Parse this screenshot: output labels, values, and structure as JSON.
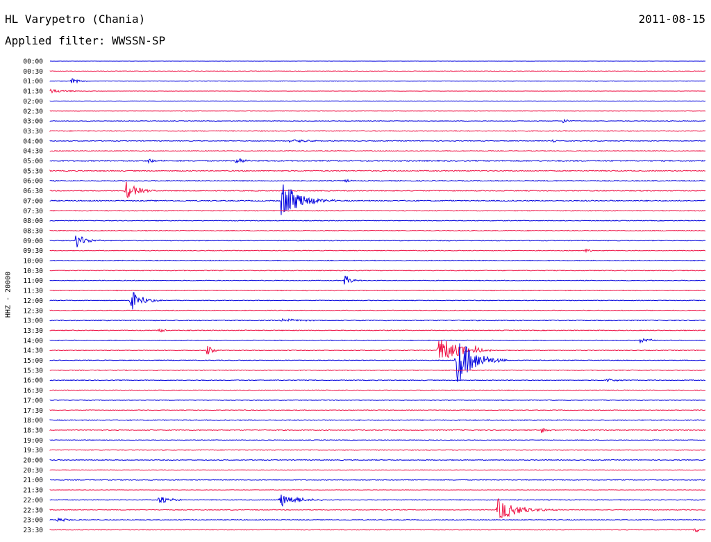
{
  "header": {
    "station": "HL Varypetro (Chania)",
    "date": "2011-08-15",
    "filter": "Applied filter: WWSSN-SP"
  },
  "y_axis_label": "HHZ - 20000",
  "colors": {
    "even_trace": "#0000dd",
    "odd_trace": "#ee1144",
    "text": "#000000"
  },
  "chart_data": {
    "type": "line",
    "title": "HL Varypetro (Chania)",
    "ylabel": "HHZ - 20000",
    "trace_duration_minutes": 30,
    "row_labels": [
      "00:00",
      "00:30",
      "01:00",
      "01:30",
      "02:00",
      "02:30",
      "03:00",
      "03:30",
      "04:00",
      "04:30",
      "05:00",
      "05:30",
      "06:00",
      "06:30",
      "07:00",
      "07:30",
      "08:00",
      "08:30",
      "09:00",
      "09:30",
      "10:00",
      "10:30",
      "11:00",
      "11:30",
      "12:00",
      "12:30",
      "13:00",
      "13:30",
      "14:00",
      "14:30",
      "15:00",
      "15:30",
      "16:00",
      "16:30",
      "17:00",
      "17:30",
      "18:00",
      "18:30",
      "19:00",
      "19:30",
      "20:00",
      "20:30",
      "21:00",
      "21:30",
      "22:00",
      "22:30",
      "23:00",
      "23:30"
    ],
    "noise_levels": [
      0.3,
      0.8,
      0.6,
      0.4,
      0.5,
      0.6,
      0.8,
      1.2,
      1.0,
      1.0,
      1.5,
      1.4,
      1.3,
      1.2,
      1.5,
      1.2,
      1.0,
      1.1,
      1.0,
      1.0,
      1.2,
      1.1,
      1.0,
      1.1,
      1.0,
      1.0,
      1.3,
      1.1,
      1.0,
      1.0,
      1.0,
      1.1,
      1.0,
      0.9,
      0.8,
      0.9,
      1.2,
      1.1,
      0.9,
      1.0,
      1.0,
      0.7,
      1.0,
      0.6,
      1.0,
      1.0,
      1.0,
      0.9
    ],
    "events": [
      {
        "row": 2,
        "minute": 1.0,
        "amplitude": 4,
        "duration_min": 1.0
      },
      {
        "row": 3,
        "minute": 0.0,
        "amplitude": 3,
        "duration_min": 2.5
      },
      {
        "row": 6,
        "minute": 23.5,
        "amplitude": 4,
        "duration_min": 0.6
      },
      {
        "row": 8,
        "minute": 11.0,
        "amplitude": 3,
        "duration_min": 3.0
      },
      {
        "row": 8,
        "minute": 23.0,
        "amplitude": 3,
        "duration_min": 0.6
      },
      {
        "row": 10,
        "minute": 4.5,
        "amplitude": 3,
        "duration_min": 1.2
      },
      {
        "row": 10,
        "minute": 8.5,
        "amplitude": 4,
        "duration_min": 1.5
      },
      {
        "row": 12,
        "minute": 13.5,
        "amplitude": 3,
        "duration_min": 0.5
      },
      {
        "row": 13,
        "minute": 3.5,
        "amplitude": 14,
        "duration_min": 1.5
      },
      {
        "row": 14,
        "minute": 10.6,
        "amplitude": 28,
        "duration_min": 2.5
      },
      {
        "row": 18,
        "minute": 1.2,
        "amplitude": 11,
        "duration_min": 1.3
      },
      {
        "row": 19,
        "minute": 24.5,
        "amplitude": 3,
        "duration_min": 1.0
      },
      {
        "row": 22,
        "minute": 13.5,
        "amplitude": 9,
        "duration_min": 0.8
      },
      {
        "row": 24,
        "minute": 3.7,
        "amplitude": 16,
        "duration_min": 1.5
      },
      {
        "row": 26,
        "minute": 10.6,
        "amplitude": 4,
        "duration_min": 1.6
      },
      {
        "row": 27,
        "minute": 5.0,
        "amplitude": 3,
        "duration_min": 1.0
      },
      {
        "row": 28,
        "minute": 27.0,
        "amplitude": 4,
        "duration_min": 1.5
      },
      {
        "row": 29,
        "minute": 7.2,
        "amplitude": 7,
        "duration_min": 0.8
      },
      {
        "row": 29,
        "minute": 17.8,
        "amplitude": 22,
        "duration_min": 2.5
      },
      {
        "row": 29,
        "minute": 19.4,
        "amplitude": 6,
        "duration_min": 1.0
      },
      {
        "row": 30,
        "minute": 18.6,
        "amplitude": 38,
        "duration_min": 2.3
      },
      {
        "row": 32,
        "minute": 25.5,
        "amplitude": 3,
        "duration_min": 1.5
      },
      {
        "row": 37,
        "minute": 22.5,
        "amplitude": 5,
        "duration_min": 0.8
      },
      {
        "row": 44,
        "minute": 5.0,
        "amplitude": 9,
        "duration_min": 1.2
      },
      {
        "row": 44,
        "minute": 10.5,
        "amplitude": 11,
        "duration_min": 2.2
      },
      {
        "row": 45,
        "minute": 20.5,
        "amplitude": 16,
        "duration_min": 2.8
      },
      {
        "row": 46,
        "minute": 0.3,
        "amplitude": 3,
        "duration_min": 1.5
      },
      {
        "row": 47,
        "minute": 29.5,
        "amplitude": 5,
        "duration_min": 0.6
      }
    ]
  }
}
